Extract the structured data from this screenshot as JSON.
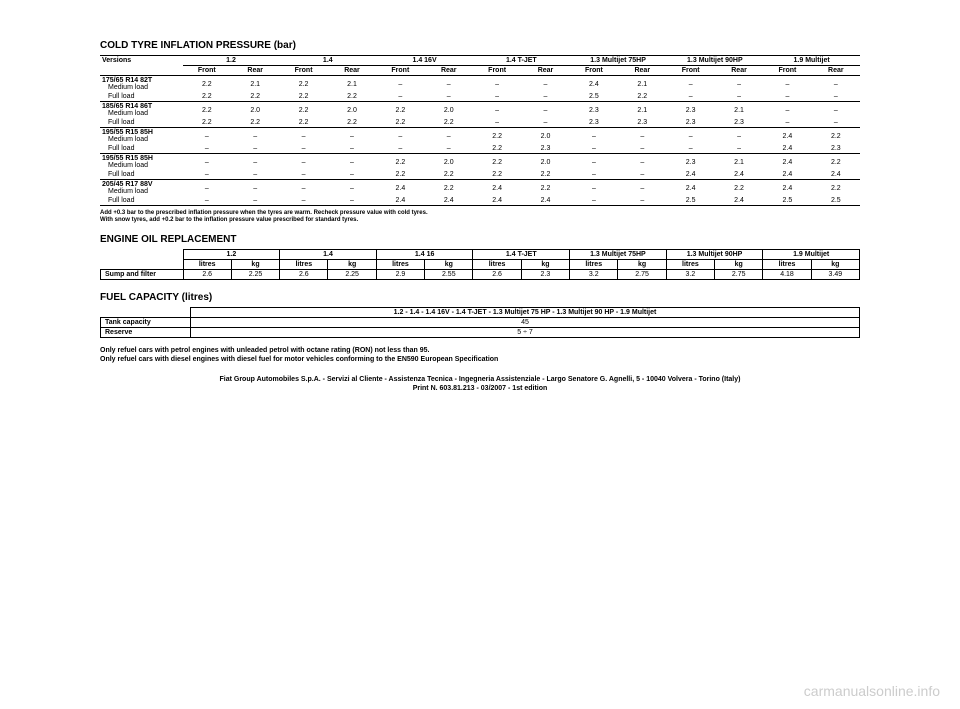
{
  "tyre": {
    "title": "COLD TYRE INFLATION PRESSURE (bar)",
    "versions_label": "Versions",
    "groups": [
      "1.2",
      "1.4",
      "1.4 16V",
      "1.4 T-JET",
      "1.3 Multijet 75HP",
      "1.3 Multijet 90HP",
      "1.9 Multijet"
    ],
    "sub": [
      "Front",
      "Rear"
    ],
    "rows": [
      {
        "label": "175/65 R14 82T",
        "sub1": "Medium load",
        "sub2": "Full load",
        "vals": [
          [
            "2.2",
            "2.1",
            "2.2",
            "2.1",
            "–",
            "–",
            "–",
            "–",
            "2.4",
            "2.1",
            "–",
            "–",
            "–",
            "–"
          ],
          [
            "2.2",
            "2.2",
            "2.2",
            "2.2",
            "–",
            "–",
            "–",
            "–",
            "2.5",
            "2.2",
            "–",
            "–",
            "–",
            "–"
          ]
        ]
      },
      {
        "label": "185/65 R14 86T",
        "sub1": "Medium load",
        "sub2": "Full load",
        "vals": [
          [
            "2.2",
            "2.0",
            "2.2",
            "2.0",
            "2.2",
            "2.0",
            "–",
            "–",
            "2.3",
            "2.1",
            "2.3",
            "2.1",
            "–",
            "–"
          ],
          [
            "2.2",
            "2.2",
            "2.2",
            "2.2",
            "2.2",
            "2.2",
            "–",
            "–",
            "2.3",
            "2.3",
            "2.3",
            "2.3",
            "–",
            "–"
          ]
        ]
      },
      {
        "label": "195/55 R15 85H",
        "sub1": "Medium load",
        "sub2": "Full load",
        "vals": [
          [
            "–",
            "–",
            "–",
            "–",
            "–",
            "–",
            "2.2",
            "2.0",
            "–",
            "–",
            "–",
            "–",
            "2.4",
            "2.2"
          ],
          [
            "–",
            "–",
            "–",
            "–",
            "–",
            "–",
            "2.2",
            "2.3",
            "–",
            "–",
            "–",
            "–",
            "2.4",
            "2.3"
          ]
        ]
      },
      {
        "label": "195/55 R15 85H",
        "sub1": "Medium load",
        "sub2": "Full load",
        "vals": [
          [
            "–",
            "–",
            "–",
            "–",
            "2.2",
            "2.0",
            "2.2",
            "2.0",
            "–",
            "–",
            "2.3",
            "2.1",
            "2.4",
            "2.2"
          ],
          [
            "–",
            "–",
            "–",
            "–",
            "2.2",
            "2.2",
            "2.2",
            "2.2",
            "–",
            "–",
            "2.4",
            "2.4",
            "2.4",
            "2.4"
          ]
        ]
      },
      {
        "label": "205/45 R17 88V",
        "sub1": "Medium load",
        "sub2": "Full load",
        "vals": [
          [
            "–",
            "–",
            "–",
            "–",
            "2.4",
            "2.2",
            "2.4",
            "2.2",
            "–",
            "–",
            "2.4",
            "2.2",
            "2.4",
            "2.2"
          ],
          [
            "–",
            "–",
            "–",
            "–",
            "2.4",
            "2.4",
            "2.4",
            "2.4",
            "–",
            "–",
            "2.5",
            "2.4",
            "2.5",
            "2.5"
          ]
        ]
      }
    ],
    "footnote1": "Add +0.3 bar to the prescribed inflation pressure when the tyres are warm. Recheck pressure value with cold tyres.",
    "footnote2": "With snow tyres, add +0.2 bar to the inflation pressure value prescribed for standard tyres."
  },
  "oil": {
    "title": "ENGINE OIL REPLACEMENT",
    "groups": [
      "1.2",
      "1.4",
      "1.4 16",
      "1.4 T-JET",
      "1.3 Multijet 75HP",
      "1.3 Multijet 90HP",
      "1.9 Multijet"
    ],
    "sub": [
      "litres",
      "kg"
    ],
    "row_label": "Sump and filter",
    "vals": [
      "2.6",
      "2.25",
      "2.6",
      "2.25",
      "2.9",
      "2.55",
      "2.6",
      "2.3",
      "3.2",
      "2.75",
      "3.2",
      "2.75",
      "4.18",
      "3.49"
    ]
  },
  "fuel": {
    "title": "FUEL CAPACITY (litres)",
    "header": "1.2 - 1.4 - 1.4 16V - 1.4 T-JET - 1.3 Multijet 75 HP - 1.3 Multijet 90 HP - 1.9 Multijet",
    "rows": [
      {
        "label": "Tank capacity",
        "val": "45"
      },
      {
        "label": "Reserve",
        "val": "5 ÷ 7"
      }
    ]
  },
  "notes": {
    "line1": "Only refuel cars with petrol engines with unleaded petrol with octane rating (RON) not less than 95.",
    "line2": "Only refuel cars with diesel engines with diesel fuel for motor vehicles conforming to the EN590 European Specification"
  },
  "publisher": {
    "line1": "Fiat Group Automobiles S.p.A. - Servizi al Cliente - Assistenza Tecnica - Ingegneria Assistenziale - Largo Senatore G. Agnelli, 5 - 10040 Volvera - Torino (Italy)",
    "line2": "Print N. 603.81.213 - 03/2007 - 1st edition"
  },
  "watermark": "carmanualsonline.info"
}
